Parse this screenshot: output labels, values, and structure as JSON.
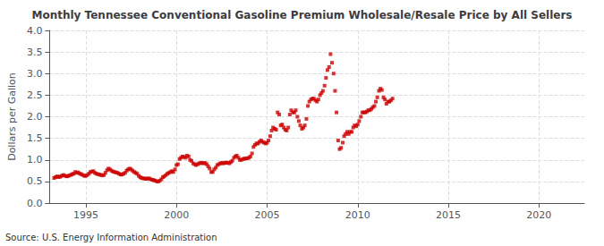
{
  "chart_data": {
    "type": "scatter",
    "title": "Monthly Tennessee Conventional Gasoline Premium Wholesale/Resale Price by All Sellers",
    "ylabel": "Dollars per Gallon",
    "annotation": "Source: U.S. Energy Information Administration",
    "color": "#cc0000",
    "marker": "square",
    "grid": true,
    "xlim": [
      1993.0,
      2022.5
    ],
    "ylim": [
      0.0,
      4.0
    ],
    "xticks": [
      1995,
      2000,
      2005,
      2010,
      2015,
      2020
    ],
    "yticks": [
      {
        "value": 0.0,
        "label": "0.0"
      },
      0.5,
      {
        "value": 1.0,
        "label": "1.0"
      },
      1.5,
      {
        "value": 2.0,
        "label": "2.0"
      },
      2.5,
      {
        "value": 3.0,
        "label": "3.0"
      },
      3.5,
      {
        "value": 4.0,
        "label": "4.0"
      }
    ],
    "x": [
      1993.25,
      1993.33,
      1993.42,
      1993.5,
      1993.58,
      1993.67,
      1993.75,
      1993.83,
      1993.92,
      1994.0,
      1994.08,
      1994.17,
      1994.25,
      1994.33,
      1994.42,
      1994.5,
      1994.58,
      1994.67,
      1994.75,
      1994.83,
      1994.92,
      1995.0,
      1995.08,
      1995.17,
      1995.25,
      1995.33,
      1995.42,
      1995.5,
      1995.58,
      1995.67,
      1995.75,
      1995.83,
      1995.92,
      1996.0,
      1996.08,
      1996.17,
      1996.25,
      1996.33,
      1996.42,
      1996.5,
      1996.58,
      1996.67,
      1996.75,
      1996.83,
      1996.92,
      1997.0,
      1997.08,
      1997.17,
      1997.25,
      1997.33,
      1997.42,
      1997.5,
      1997.58,
      1997.67,
      1997.75,
      1997.83,
      1997.92,
      1998.0,
      1998.08,
      1998.17,
      1998.25,
      1998.33,
      1998.42,
      1998.5,
      1998.58,
      1998.67,
      1998.75,
      1998.83,
      1998.92,
      1999.0,
      1999.08,
      1999.17,
      1999.25,
      1999.33,
      1999.42,
      1999.5,
      1999.58,
      1999.67,
      1999.75,
      1999.83,
      1999.92,
      2000.0,
      2000.08,
      2000.17,
      2000.25,
      2000.33,
      2000.42,
      2000.5,
      2000.58,
      2000.67,
      2000.75,
      2000.83,
      2000.92,
      2001.0,
      2001.08,
      2001.17,
      2001.25,
      2001.33,
      2001.42,
      2001.5,
      2001.58,
      2001.67,
      2001.75,
      2001.83,
      2001.92,
      2002.0,
      2002.08,
      2002.17,
      2002.25,
      2002.33,
      2002.42,
      2002.5,
      2002.58,
      2002.67,
      2002.75,
      2002.83,
      2002.92,
      2003.0,
      2003.08,
      2003.17,
      2003.25,
      2003.33,
      2003.42,
      2003.5,
      2003.58,
      2003.67,
      2003.75,
      2003.83,
      2003.92,
      2004.0,
      2004.08,
      2004.17,
      2004.25,
      2004.33,
      2004.42,
      2004.5,
      2004.58,
      2004.67,
      2004.75,
      2004.83,
      2004.92,
      2005.0,
      2005.08,
      2005.17,
      2005.25,
      2005.33,
      2005.42,
      2005.5,
      2005.58,
      2005.67,
      2005.75,
      2005.83,
      2005.92,
      2006.0,
      2006.08,
      2006.17,
      2006.25,
      2006.33,
      2006.42,
      2006.5,
      2006.58,
      2006.67,
      2006.75,
      2006.83,
      2006.92,
      2007.0,
      2007.08,
      2007.17,
      2007.25,
      2007.33,
      2007.42,
      2007.5,
      2007.58,
      2007.67,
      2007.75,
      2007.83,
      2007.92,
      2008.0,
      2008.08,
      2008.17,
      2008.25,
      2008.33,
      2008.42,
      2008.5,
      2008.58,
      2008.67,
      2008.75,
      2008.83,
      2008.92,
      2009.0,
      2009.08,
      2009.17,
      2009.25,
      2009.33,
      2009.42,
      2009.5,
      2009.58,
      2009.67,
      2009.75,
      2009.83,
      2009.92,
      2010.0,
      2010.08,
      2010.17,
      2010.25,
      2010.33,
      2010.42,
      2010.5,
      2010.58,
      2010.67,
      2010.75,
      2010.83,
      2010.92,
      2011.0,
      2011.08,
      2011.17,
      2011.25,
      2011.33,
      2011.42,
      2011.5,
      2011.58,
      2011.67,
      2011.75,
      2011.83,
      2011.92
    ],
    "values": [
      0.58,
      0.6,
      0.62,
      0.6,
      0.61,
      0.63,
      0.65,
      0.64,
      0.62,
      0.62,
      0.64,
      0.65,
      0.67,
      0.68,
      0.72,
      0.7,
      0.71,
      0.68,
      0.67,
      0.65,
      0.63,
      0.63,
      0.65,
      0.68,
      0.72,
      0.73,
      0.74,
      0.7,
      0.68,
      0.67,
      0.66,
      0.65,
      0.64,
      0.65,
      0.7,
      0.76,
      0.8,
      0.78,
      0.75,
      0.73,
      0.72,
      0.71,
      0.7,
      0.68,
      0.66,
      0.66,
      0.68,
      0.7,
      0.75,
      0.78,
      0.8,
      0.78,
      0.75,
      0.72,
      0.7,
      0.68,
      0.63,
      0.6,
      0.58,
      0.57,
      0.57,
      0.56,
      0.57,
      0.57,
      0.55,
      0.54,
      0.53,
      0.52,
      0.5,
      0.5,
      0.52,
      0.55,
      0.6,
      0.62,
      0.65,
      0.68,
      0.7,
      0.72,
      0.74,
      0.72,
      0.78,
      0.88,
      0.9,
      1.02,
      1.05,
      1.08,
      1.07,
      1.05,
      1.1,
      1.08,
      1.0,
      0.98,
      0.92,
      0.9,
      0.88,
      0.9,
      0.92,
      0.93,
      0.93,
      0.92,
      0.93,
      0.9,
      0.85,
      0.8,
      0.72,
      0.72,
      0.78,
      0.82,
      0.88,
      0.9,
      0.92,
      0.93,
      0.92,
      0.93,
      0.94,
      0.93,
      0.92,
      0.95,
      0.98,
      1.05,
      1.08,
      1.1,
      1.05,
      1.0,
      1.0,
      1.02,
      1.03,
      1.03,
      1.04,
      1.05,
      1.08,
      1.15,
      1.3,
      1.35,
      1.38,
      1.38,
      1.42,
      1.45,
      1.42,
      1.4,
      1.38,
      1.4,
      1.45,
      1.55,
      1.68,
      1.75,
      1.72,
      1.7,
      2.1,
      2.05,
      1.8,
      1.82,
      1.75,
      1.7,
      1.68,
      1.75,
      2.05,
      2.15,
      2.1,
      2.1,
      2.15,
      2.0,
      1.9,
      1.8,
      1.72,
      1.75,
      1.8,
      1.95,
      2.25,
      2.35,
      2.4,
      2.42,
      2.42,
      2.38,
      2.35,
      2.4,
      2.5,
      2.55,
      2.6,
      2.72,
      2.9,
      3.08,
      3.15,
      3.45,
      3.25,
      3.0,
      2.6,
      2.1,
      1.45,
      1.25,
      1.28,
      1.4,
      1.55,
      1.6,
      1.65,
      1.6,
      1.65,
      1.65,
      1.75,
      1.8,
      1.78,
      1.82,
      1.9,
      2.0,
      2.1,
      2.1,
      2.1,
      2.12,
      2.15,
      2.15,
      2.18,
      2.22,
      2.25,
      2.35,
      2.45,
      2.6,
      2.65,
      2.62,
      2.45,
      2.4,
      2.3,
      2.35,
      2.35,
      2.38,
      2.42
    ]
  }
}
